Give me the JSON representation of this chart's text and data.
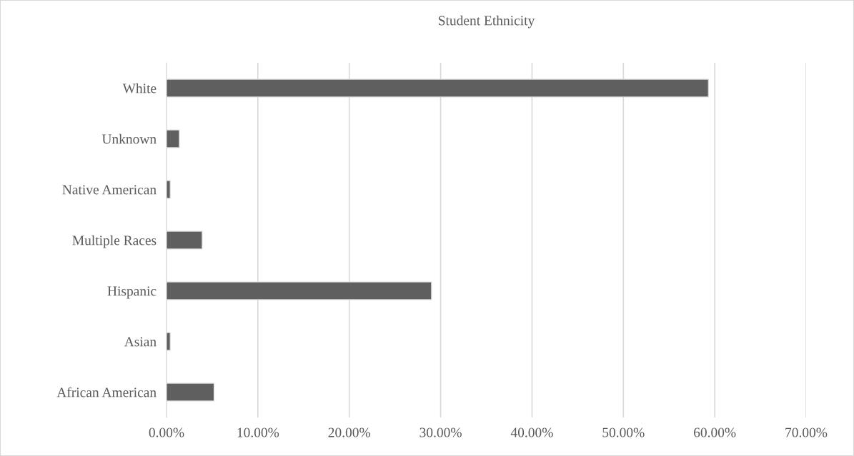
{
  "chart_data": {
    "type": "bar",
    "orientation": "horizontal",
    "title": "Student Ethnicity",
    "categories": [
      "White",
      "Unknown",
      "Native American",
      "Multiple Races",
      "Hispanic",
      "Asian",
      "African American"
    ],
    "values": [
      59.3,
      1.4,
      0.4,
      3.9,
      29.0,
      0.4,
      5.2
    ],
    "color": "#5f5f5f",
    "xlim": [
      0,
      70
    ],
    "xticks": [
      {
        "value": 0,
        "label": "0.00%"
      },
      {
        "value": 10,
        "label": "10.00%"
      },
      {
        "value": 20,
        "label": "20.00%"
      },
      {
        "value": 30,
        "label": "30.00%"
      },
      {
        "value": 40,
        "label": "40.00%"
      },
      {
        "value": 50,
        "label": "50.00%"
      },
      {
        "value": 60,
        "label": "60.00%"
      },
      {
        "value": 70,
        "label": "70.00%"
      }
    ],
    "grid": "x"
  }
}
